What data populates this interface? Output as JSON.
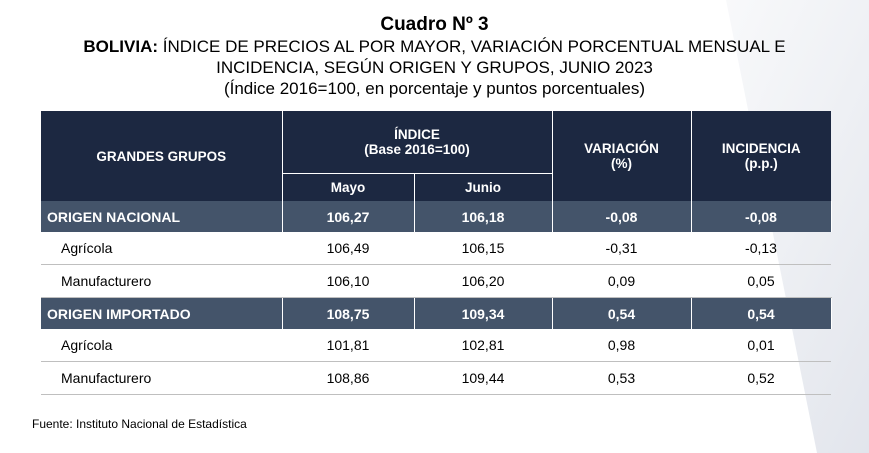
{
  "title": {
    "line1": "Cuadro Nº 3",
    "line2_bold": "BOLIVIA:",
    "line2_rest": " ÍNDICE DE PRECIOS AL POR MAYOR, VARIACIÓN PORCENTUAL MENSUAL E",
    "line3": "INCIDENCIA, SEGÚN ORIGEN Y GRUPOS, JUNIO 2023",
    "line4": "(Índice 2016=100, en porcentaje y puntos porcentuales)"
  },
  "table": {
    "headers": {
      "groups": "GRANDES GRUPOS",
      "index_line1": "ÍNDICE",
      "index_line2": "(Base 2016=100)",
      "may": "Mayo",
      "june": "Junio",
      "variation_line1": "VARIACIÓN",
      "variation_line2": "(%)",
      "incidence_line1": "INCIDENCIA",
      "incidence_line2": "(p.p.)"
    },
    "rows": [
      {
        "label": "ORIGEN NACIONAL",
        "may": "106,27",
        "june": "106,18",
        "variation": "-0,08",
        "incidence": "-0,08"
      },
      {
        "label": "Agrícola",
        "may": "106,49",
        "june": "106,15",
        "variation": "-0,31",
        "incidence": "-0,13"
      },
      {
        "label": "Manufacturero",
        "may": "106,10",
        "june": "106,20",
        "variation": "0,09",
        "incidence": "0,05"
      },
      {
        "label": "ORIGEN IMPORTADO",
        "may": "108,75",
        "june": "109,34",
        "variation": "0,54",
        "incidence": "0,54"
      },
      {
        "label": "Agrícola",
        "may": "101,81",
        "june": "102,81",
        "variation": "0,98",
        "incidence": "0,01"
      },
      {
        "label": "Manufacturero",
        "may": "108,86",
        "june": "109,44",
        "variation": "0,53",
        "incidence": "0,52"
      }
    ]
  },
  "source": "Fuente: Instituto Nacional de Estadística",
  "colors": {
    "header_bg": "#1c2841",
    "group_row_bg": "#44546a"
  }
}
